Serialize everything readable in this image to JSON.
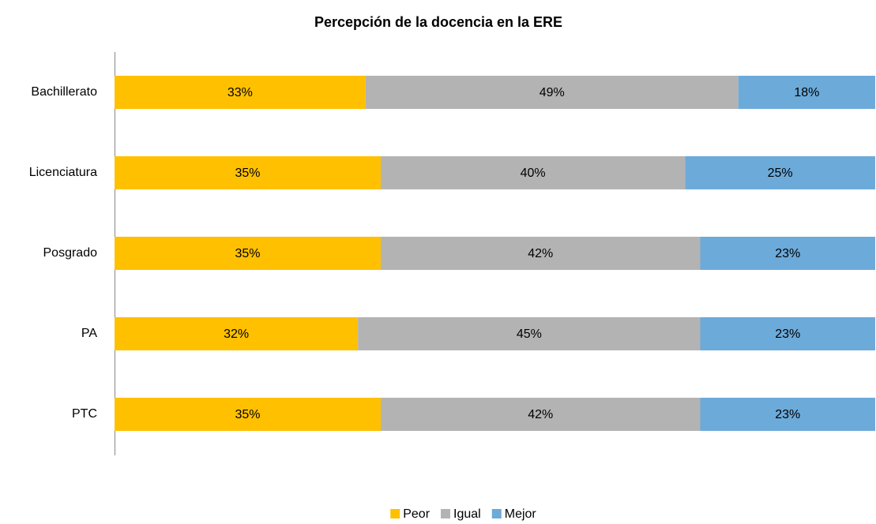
{
  "chart_data": {
    "type": "bar",
    "orientation": "horizontal",
    "stacked": true,
    "title": "Percepción de la docencia en la ERE",
    "categories": [
      "Bachillerato",
      "Licenciatura",
      "Posgrado",
      "PA",
      "PTC"
    ],
    "xlim": [
      0,
      100
    ],
    "legend": "bottom",
    "series": [
      {
        "name": "Peor",
        "color": "#FFC000",
        "values": [
          33,
          35,
          35,
          32,
          35
        ],
        "value_labels": [
          "33%",
          "35%",
          "35%",
          "32%",
          "35%"
        ]
      },
      {
        "name": "Igual",
        "color": "#B3B3B3",
        "values": [
          49,
          40,
          42,
          45,
          42
        ],
        "value_labels": [
          "49%",
          "40%",
          "42%",
          "45%",
          "42%"
        ]
      },
      {
        "name": "Mejor",
        "color": "#6CAADA",
        "values": [
          18,
          25,
          23,
          23,
          23
        ],
        "value_labels": [
          "18%",
          "25%",
          "23%",
          "23%",
          "23%"
        ]
      }
    ]
  }
}
